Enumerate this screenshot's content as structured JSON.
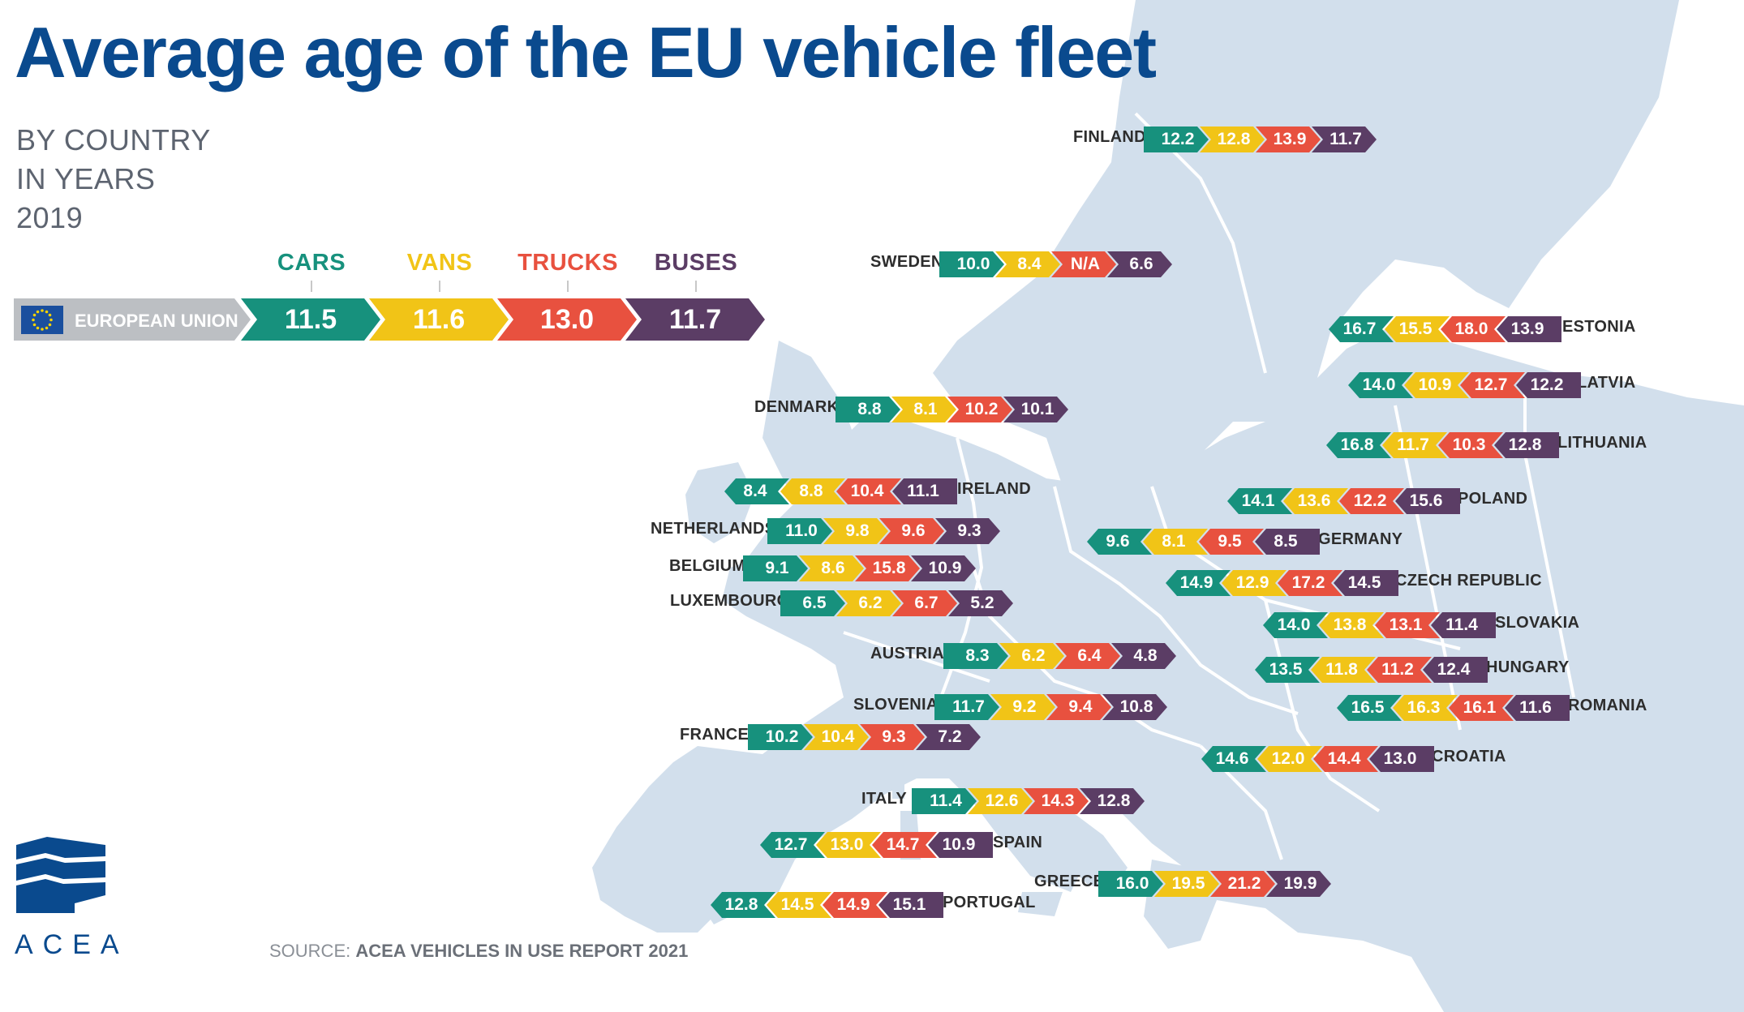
{
  "title": "Average age of the EU vehicle fleet",
  "subtitle_lines": [
    "BY COUNTRY",
    "IN YEARS",
    "2019"
  ],
  "categories": [
    {
      "label": "CARS",
      "color": "#17917d"
    },
    {
      "label": "VANS",
      "color": "#f1c417"
    },
    {
      "label": "TRUCKS",
      "color": "#e8513f"
    },
    {
      "label": "BUSES",
      "color": "#5b3d65"
    }
  ],
  "eu": {
    "name": "EUROPEAN UNION",
    "values": [
      "11.5",
      "11.6",
      "13.0",
      "11.7"
    ]
  },
  "countries": [
    {
      "name": "FINLAND",
      "values": [
        "12.2",
        "12.8",
        "13.9",
        "11.7"
      ]
    },
    {
      "name": "SWEDEN",
      "values": [
        "10.0",
        "8.4",
        "N/A",
        "6.6"
      ]
    },
    {
      "name": "ESTONIA",
      "values": [
        "16.7",
        "15.5",
        "18.0",
        "13.9"
      ]
    },
    {
      "name": "LATVIA",
      "values": [
        "14.0",
        "10.9",
        "12.7",
        "12.2"
      ]
    },
    {
      "name": "LITHUANIA",
      "values": [
        "16.8",
        "11.7",
        "10.3",
        "12.8"
      ]
    },
    {
      "name": "DENMARK",
      "values": [
        "8.8",
        "8.1",
        "10.2",
        "10.1"
      ]
    },
    {
      "name": "IRELAND",
      "values": [
        "8.4",
        "8.8",
        "10.4",
        "11.1"
      ]
    },
    {
      "name": "POLAND",
      "values": [
        "14.1",
        "13.6",
        "12.2",
        "15.6"
      ]
    },
    {
      "name": "NETHERLANDS",
      "values": [
        "11.0",
        "9.8",
        "9.6",
        "9.3"
      ]
    },
    {
      "name": "GERMANY",
      "values": [
        "9.6",
        "8.1",
        "9.5",
        "8.5"
      ]
    },
    {
      "name": "BELGIUM",
      "values": [
        "9.1",
        "8.6",
        "15.8",
        "10.9"
      ]
    },
    {
      "name": "CZECH REPUBLIC",
      "values": [
        "14.9",
        "12.9",
        "17.2",
        "14.5"
      ]
    },
    {
      "name": "LUXEMBOURG",
      "values": [
        "6.5",
        "6.2",
        "6.7",
        "5.2"
      ]
    },
    {
      "name": "SLOVAKIA",
      "values": [
        "14.0",
        "13.8",
        "13.1",
        "11.4"
      ]
    },
    {
      "name": "AUSTRIA",
      "values": [
        "8.3",
        "6.2",
        "6.4",
        "4.8"
      ]
    },
    {
      "name": "HUNGARY",
      "values": [
        "13.5",
        "11.8",
        "11.2",
        "12.4"
      ]
    },
    {
      "name": "SLOVENIA",
      "values": [
        "11.7",
        "9.2",
        "9.4",
        "10.8"
      ]
    },
    {
      "name": "ROMANIA",
      "values": [
        "16.5",
        "16.3",
        "16.1",
        "11.6"
      ]
    },
    {
      "name": "FRANCE",
      "values": [
        "10.2",
        "10.4",
        "9.3",
        "7.2"
      ]
    },
    {
      "name": "CROATIA",
      "values": [
        "14.6",
        "12.0",
        "14.4",
        "13.0"
      ]
    },
    {
      "name": "ITALY",
      "values": [
        "11.4",
        "12.6",
        "14.3",
        "12.8"
      ]
    },
    {
      "name": "SPAIN",
      "values": [
        "12.7",
        "13.0",
        "14.7",
        "10.9"
      ]
    },
    {
      "name": "GREECE",
      "values": [
        "16.0",
        "19.5",
        "21.2",
        "19.9"
      ]
    },
    {
      "name": "PORTUGAL",
      "values": [
        "12.8",
        "14.5",
        "14.9",
        "15.1"
      ]
    }
  ],
  "logo_text": "ACEA",
  "source_prefix": "SOURCE: ",
  "source_text": "ACEA VEHICLES IN USE REPORT 2021"
}
